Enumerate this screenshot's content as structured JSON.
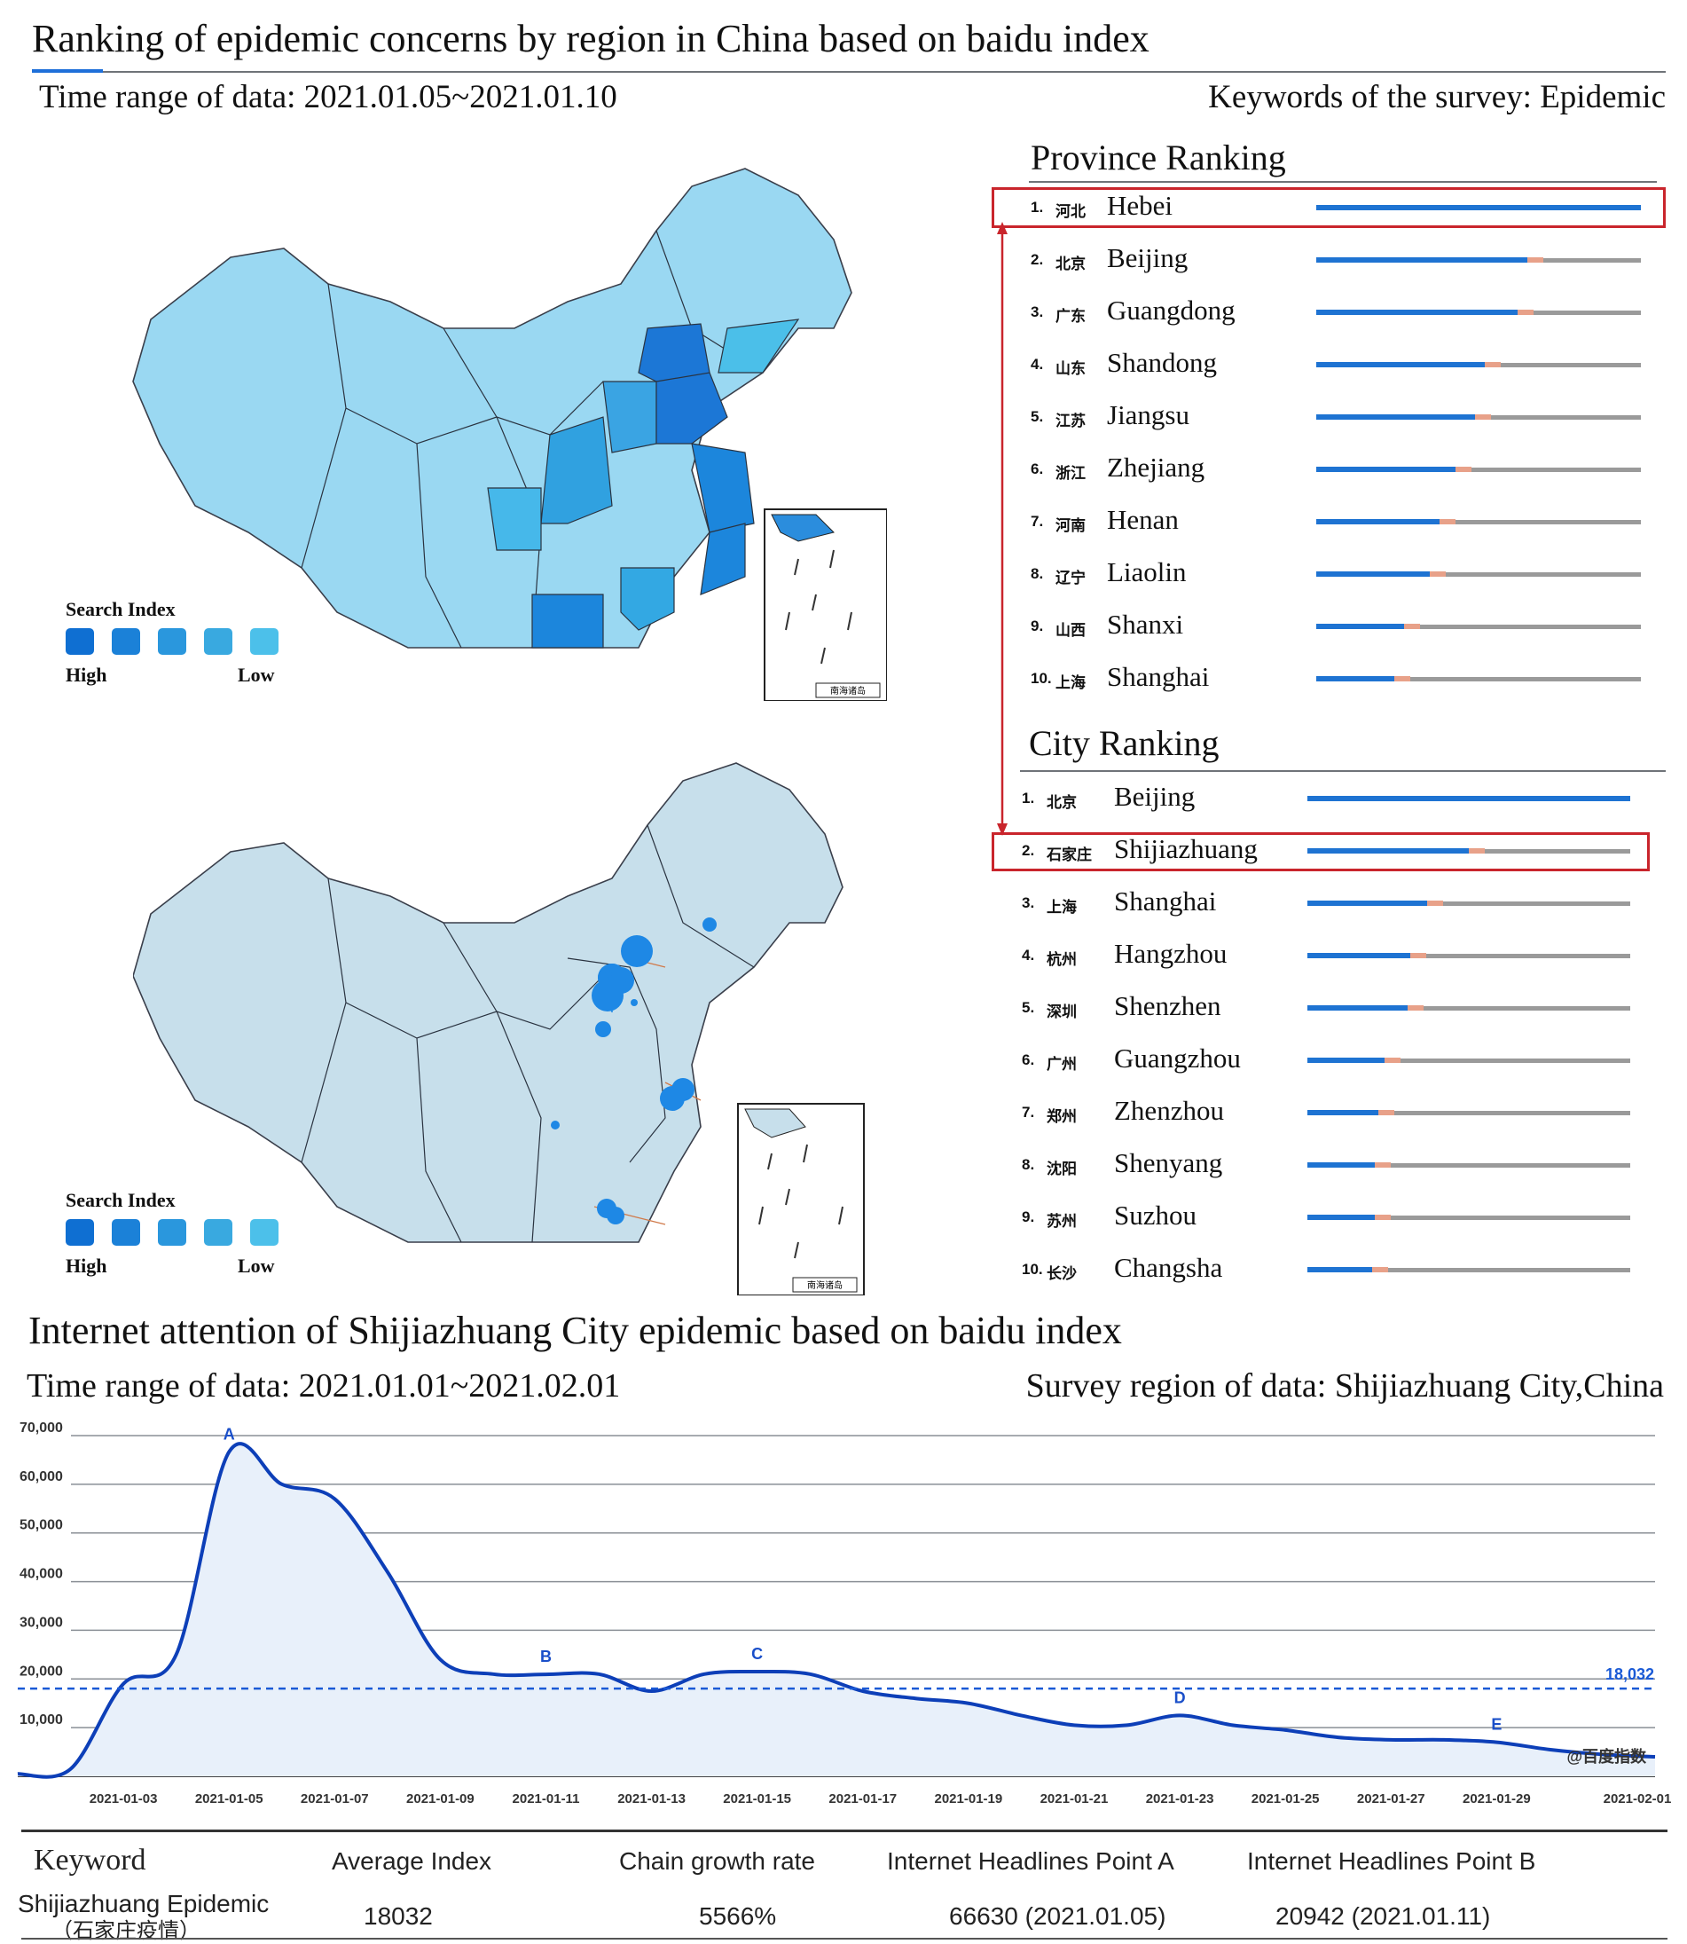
{
  "header": {
    "title": "Ranking of epidemic concerns by region in China based on baidu index",
    "time_range": "Time range of data: 2021.01.05~2021.01.10",
    "keywords": "Keywords of the survey: Epidemic"
  },
  "province_ranking": {
    "heading": "Province Ranking",
    "items": [
      {
        "num": "1.",
        "cn": "河北",
        "en": "Hebei",
        "value": 1.0
      },
      {
        "num": "2.",
        "cn": "北京",
        "en": "Beijing",
        "value": 0.65
      },
      {
        "num": "3.",
        "cn": "广东",
        "en": "Guangdong",
        "value": 0.62
      },
      {
        "num": "4.",
        "cn": "山东",
        "en": "Shandong",
        "value": 0.52
      },
      {
        "num": "5.",
        "cn": "江苏",
        "en": "Jiangsu",
        "value": 0.49
      },
      {
        "num": "6.",
        "cn": "浙江",
        "en": "Zhejiang",
        "value": 0.43
      },
      {
        "num": "7.",
        "cn": "河南",
        "en": "Henan",
        "value": 0.38
      },
      {
        "num": "8.",
        "cn": "辽宁",
        "en": "Liaolin",
        "value": 0.35
      },
      {
        "num": "9.",
        "cn": "山西",
        "en": "Shanxi",
        "value": 0.27
      },
      {
        "num": "10.",
        "cn": "上海",
        "en": "Shanghai",
        "value": 0.24
      }
    ]
  },
  "city_ranking": {
    "heading": "City Ranking",
    "items": [
      {
        "num": "1.",
        "cn": "北京",
        "en": "Beijing",
        "value": 1.0
      },
      {
        "num": "2.",
        "cn": "石家庄",
        "en": "Shijiazhuang",
        "value": 0.5
      },
      {
        "num": "3.",
        "cn": "上海",
        "en": "Shanghai",
        "value": 0.37
      },
      {
        "num": "4.",
        "cn": "杭州",
        "en": "Hangzhou",
        "value": 0.32
      },
      {
        "num": "5.",
        "cn": "深圳",
        "en": "Shenzhen",
        "value": 0.31
      },
      {
        "num": "6.",
        "cn": "广州",
        "en": "Guangzhou",
        "value": 0.24
      },
      {
        "num": "7.",
        "cn": "郑州",
        "en": "Zhenzhou",
        "value": 0.22
      },
      {
        "num": "8.",
        "cn": "沈阳",
        "en": "Shenyang",
        "value": 0.21
      },
      {
        "num": "9.",
        "cn": "苏州",
        "en": "Suzhou",
        "value": 0.21
      },
      {
        "num": "10.",
        "cn": "长沙",
        "en": "Changsha",
        "value": 0.2
      }
    ]
  },
  "map_legend": {
    "title": "Search Index",
    "high": "High",
    "low": "Low",
    "colors": [
      "#0f6fd2",
      "#1b81d8",
      "#2a97dd",
      "#39a9e0",
      "#4cc0ea"
    ]
  },
  "map_inset_label": "南海诸岛",
  "map_colors": {
    "region": "#9ad8f2",
    "outline": "#3a3f4b",
    "bubble": "#1e88e5",
    "region2": "#c7dfeb"
  },
  "section2": {
    "title": "Internet attention of Shijiazhuang City epidemic based on baidu index",
    "time_range": "Time range of data: 2021.01.01~2021.02.01",
    "region": "Survey region of data: Shijiazhuang City,China"
  },
  "chart_data": {
    "type": "area",
    "x_ticks": [
      "2021-01-03",
      "2021-01-05",
      "2021-01-07",
      "2021-01-09",
      "2021-01-11",
      "2021-01-13",
      "2021-01-15",
      "2021-01-17",
      "2021-01-19",
      "2021-01-21",
      "2021-01-23",
      "2021-01-25",
      "2021-01-27",
      "2021-01-29",
      "2021-02-01"
    ],
    "y_ticks": [
      "10,000",
      "20,000",
      "30,000",
      "40,000",
      "50,000",
      "60,000",
      "70,000"
    ],
    "ylim": [
      0,
      70000
    ],
    "x": [
      "2021-01-01",
      "2021-01-02",
      "2021-01-03",
      "2021-01-04",
      "2021-01-05",
      "2021-01-06",
      "2021-01-07",
      "2021-01-08",
      "2021-01-09",
      "2021-01-10",
      "2021-01-11",
      "2021-01-12",
      "2021-01-13",
      "2021-01-14",
      "2021-01-15",
      "2021-01-16",
      "2021-01-17",
      "2021-01-18",
      "2021-01-19",
      "2021-01-20",
      "2021-01-21",
      "2021-01-22",
      "2021-01-23",
      "2021-01-24",
      "2021-01-25",
      "2021-01-26",
      "2021-01-27",
      "2021-01-28",
      "2021-01-29",
      "2021-01-30",
      "2021-01-31",
      "2021-02-01"
    ],
    "series": [
      {
        "values": [
          500,
          1500,
          19000,
          25000,
          66630,
          60000,
          57000,
          42000,
          24000,
          21000,
          20942,
          21000,
          17500,
          21000,
          21500,
          21000,
          17500,
          16000,
          15000,
          12500,
          10500,
          10500,
          12500,
          10500,
          9500,
          8000,
          7500,
          7500,
          7000,
          5500,
          4500,
          4000
        ]
      }
    ],
    "average_value": 18032,
    "average_label": "18,032",
    "annotations": [
      {
        "label": "A",
        "x": "2021-01-05",
        "y": 66630
      },
      {
        "label": "B",
        "x": "2021-01-11",
        "y": 20942
      },
      {
        "label": "C",
        "x": "2021-01-15",
        "y": 21500
      },
      {
        "label": "D",
        "x": "2021-01-23",
        "y": 12500
      },
      {
        "label": "E",
        "x": "2021-01-29",
        "y": 7000
      }
    ],
    "watermark": "@百度指数",
    "line_color": "#0d3fb8",
    "fill_color": "#e8f0fa"
  },
  "summary_table": {
    "headers": [
      "Keyword",
      "Average Index",
      "Chain  growth rate",
      "Internet Headlines Point A",
      "Internet Headlines Point B"
    ],
    "keyword": "Shijiazhuang Epidemic",
    "keyword_cn": "（石家庄疫情）",
    "average": "18032",
    "chain_growth": "5566%",
    "point_a": "66630 (2021.01.05)",
    "point_b": "20942 (2021.01.11)"
  }
}
